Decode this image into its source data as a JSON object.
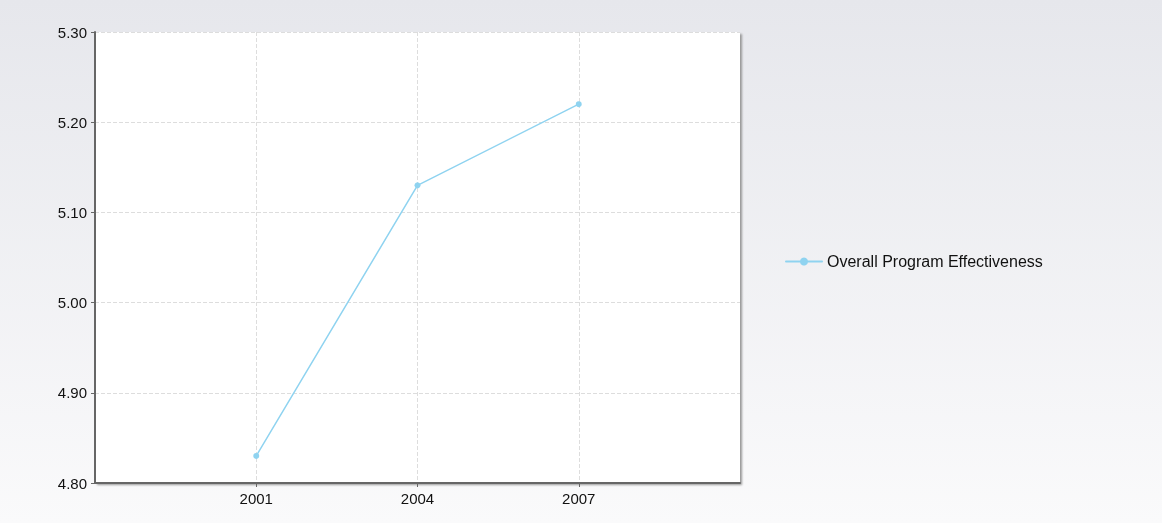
{
  "chart_data": {
    "type": "line",
    "x": [
      2001,
      2004,
      2007
    ],
    "series": [
      {
        "name": "Overall Program Effectiveness",
        "color": "#8fd3f0",
        "values": [
          4.83,
          5.13,
          5.22
        ]
      }
    ],
    "xlim": [
      1998,
      2010
    ],
    "xticks": [
      2001,
      2004,
      2007
    ],
    "ylim": [
      4.8,
      5.3
    ],
    "yticks": [
      {
        "value": 4.8,
        "label": "4.80"
      },
      {
        "value": 4.9,
        "label": "4.90"
      },
      {
        "value": 5.0,
        "label": "5.00"
      },
      {
        "value": 5.1,
        "label": "5.10"
      },
      {
        "value": 5.2,
        "label": "5.20"
      },
      {
        "value": 5.3,
        "label": "5.30"
      }
    ],
    "grid": true,
    "legend": "right",
    "marker": "circle",
    "line_style": "solid"
  }
}
